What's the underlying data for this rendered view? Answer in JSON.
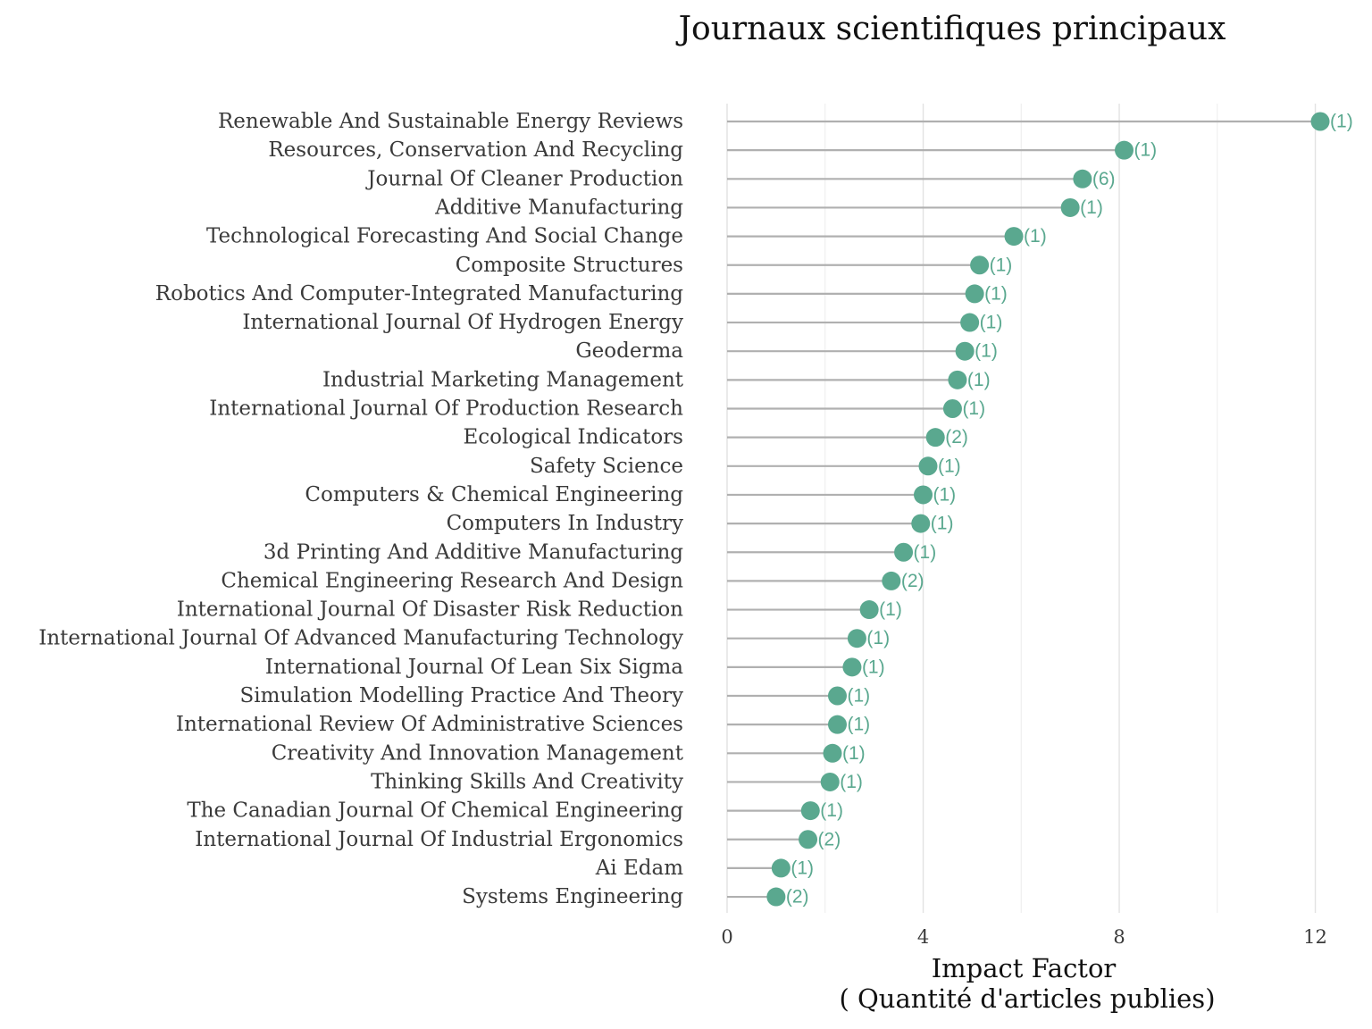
{
  "chart_data": {
    "type": "lollipop",
    "title": "Journaux scientifiques principaux",
    "xlabel": "Impact Factor",
    "xlabel_sub": "( Quantité d'articles publies)",
    "xlim": [
      0,
      12.3
    ],
    "xticks": [
      0,
      4,
      8,
      12
    ],
    "grid": true,
    "point_color": "#5aa88f",
    "stem_color": "#b0b0b0",
    "data": [
      {
        "journal": "Renewable And Sustainable Energy Reviews",
        "impact_factor": 12.1,
        "articles_label": "(1)"
      },
      {
        "journal": "Resources, Conservation And Recycling",
        "impact_factor": 8.1,
        "articles_label": "(1)"
      },
      {
        "journal": "Journal Of Cleaner Production",
        "impact_factor": 7.25,
        "articles_label": "(6)"
      },
      {
        "journal": "Additive Manufacturing",
        "impact_factor": 7.0,
        "articles_label": "(1)"
      },
      {
        "journal": "Technological Forecasting And Social Change",
        "impact_factor": 5.85,
        "articles_label": "(1)"
      },
      {
        "journal": "Composite Structures",
        "impact_factor": 5.15,
        "articles_label": "(1)"
      },
      {
        "journal": "Robotics And Computer-Integrated Manufacturing",
        "impact_factor": 5.05,
        "articles_label": "(1)"
      },
      {
        "journal": "International Journal Of Hydrogen Energy",
        "impact_factor": 4.95,
        "articles_label": "(1)"
      },
      {
        "journal": "Geoderma",
        "impact_factor": 4.85,
        "articles_label": "(1)"
      },
      {
        "journal": "Industrial Marketing Management",
        "impact_factor": 4.7,
        "articles_label": "(1)"
      },
      {
        "journal": "International Journal Of Production Research",
        "impact_factor": 4.6,
        "articles_label": "(1)"
      },
      {
        "journal": "Ecological Indicators",
        "impact_factor": 4.25,
        "articles_label": "(2)"
      },
      {
        "journal": "Safety Science",
        "impact_factor": 4.1,
        "articles_label": "(1)"
      },
      {
        "journal": "Computers & Chemical Engineering",
        "impact_factor": 4.0,
        "articles_label": "(1)"
      },
      {
        "journal": "Computers In Industry",
        "impact_factor": 3.95,
        "articles_label": "(1)"
      },
      {
        "journal": "3d Printing And Additive Manufacturing",
        "impact_factor": 3.6,
        "articles_label": "(1)"
      },
      {
        "journal": "Chemical Engineering Research And Design",
        "impact_factor": 3.35,
        "articles_label": "(2)"
      },
      {
        "journal": "International Journal Of Disaster Risk Reduction",
        "impact_factor": 2.9,
        "articles_label": "(1)"
      },
      {
        "journal": "International Journal Of Advanced Manufacturing Technology",
        "impact_factor": 2.65,
        "articles_label": "(1)"
      },
      {
        "journal": "International Journal Of Lean Six Sigma",
        "impact_factor": 2.55,
        "articles_label": "(1)"
      },
      {
        "journal": "Simulation Modelling Practice And Theory",
        "impact_factor": 2.25,
        "articles_label": "(1)"
      },
      {
        "journal": "International Review Of Administrative Sciences",
        "impact_factor": 2.25,
        "articles_label": "(1)"
      },
      {
        "journal": "Creativity And Innovation Management",
        "impact_factor": 2.15,
        "articles_label": "(1)"
      },
      {
        "journal": "Thinking Skills And Creativity",
        "impact_factor": 2.1,
        "articles_label": "(1)"
      },
      {
        "journal": "The Canadian Journal Of Chemical Engineering",
        "impact_factor": 1.7,
        "articles_label": "(1)"
      },
      {
        "journal": "International Journal Of Industrial Ergonomics",
        "impact_factor": 1.65,
        "articles_label": "(2)"
      },
      {
        "journal": "Ai Edam",
        "impact_factor": 1.1,
        "articles_label": "(1)"
      },
      {
        "journal": "Systems Engineering",
        "impact_factor": 1.0,
        "articles_label": "(2)"
      }
    ]
  }
}
